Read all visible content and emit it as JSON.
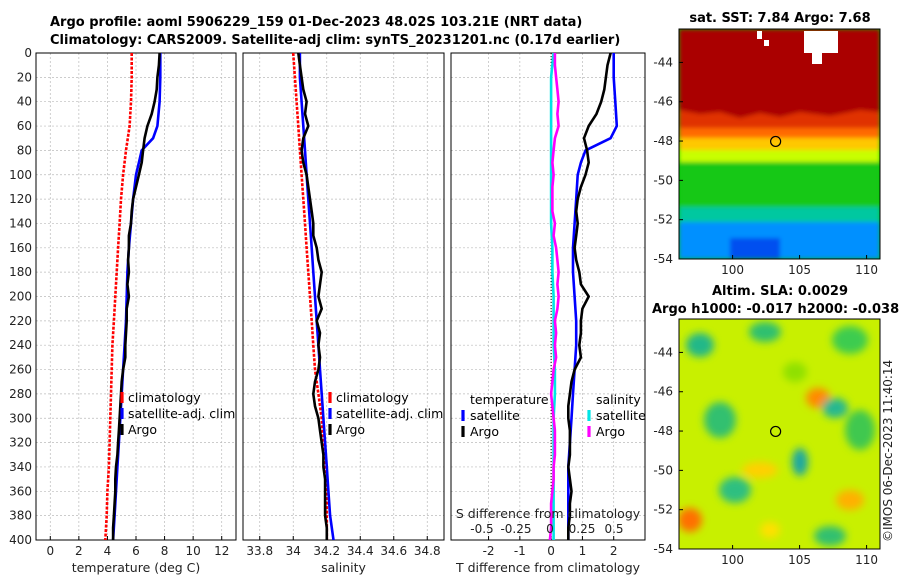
{
  "title_line1": "Argo profile: aoml 5906229_159 01-Dec-2023 48.02S 103.21E (NRT data)",
  "title_line2": "Climatology: CARS2009. Satellite-adj clim: synTS_20231201.nc (0.17d earlier)",
  "colors": {
    "climatology": "#ff0000",
    "satellite": "#0000ff",
    "argo": "#000000",
    "salinity_sat": "#00e5e5",
    "salinity_diff": "#ff00ff"
  },
  "depth_axis": {
    "min": 0,
    "max": 400,
    "ticks": [
      0,
      20,
      40,
      60,
      80,
      100,
      120,
      140,
      160,
      180,
      200,
      220,
      240,
      260,
      280,
      300,
      320,
      340,
      360,
      380,
      400
    ]
  },
  "chart_data": [
    {
      "type": "line",
      "name": "temperature-panel",
      "xlabel": "temperature (deg C)",
      "xlim": [
        -1,
        13
      ],
      "xticks": [
        0,
        2,
        4,
        6,
        8,
        10,
        12
      ],
      "legend": [
        "climatology",
        "satellite-adj. clim",
        "Argo"
      ],
      "series": [
        {
          "name": "climatology",
          "color_key": "climatology",
          "depth": [
            0,
            20,
            40,
            60,
            80,
            100,
            120,
            140,
            160,
            180,
            200,
            220,
            240,
            260,
            280,
            300,
            320,
            340,
            360,
            380,
            400
          ],
          "values": [
            5.7,
            5.7,
            5.65,
            5.55,
            5.3,
            5.1,
            4.95,
            4.85,
            4.75,
            4.65,
            4.55,
            4.45,
            4.35,
            4.3,
            4.25,
            4.2,
            4.15,
            4.1,
            4.0,
            3.95,
            3.85
          ]
        },
        {
          "name": "satellite-adj. clim",
          "color_key": "satellite",
          "depth": [
            0,
            20,
            40,
            60,
            70,
            80,
            90,
            100,
            120,
            140,
            160,
            180,
            200,
            220,
            240,
            260,
            280,
            300,
            320,
            340,
            360,
            380,
            400
          ],
          "values": [
            7.7,
            7.7,
            7.65,
            7.5,
            7.2,
            6.4,
            6.2,
            6.0,
            5.8,
            5.65,
            5.5,
            5.4,
            5.35,
            5.3,
            5.2,
            5.1,
            5.0,
            4.9,
            4.8,
            4.7,
            4.6,
            4.5,
            4.4
          ]
        },
        {
          "name": "Argo",
          "color_key": "argo",
          "depth": [
            0,
            10,
            20,
            30,
            40,
            50,
            60,
            70,
            80,
            90,
            100,
            110,
            120,
            130,
            140,
            150,
            160,
            170,
            180,
            190,
            200,
            210,
            220,
            230,
            240,
            250,
            260,
            270,
            280,
            290,
            300,
            310,
            320,
            330,
            340,
            350,
            360,
            370,
            380,
            390,
            400
          ],
          "values": [
            7.65,
            7.6,
            7.5,
            7.45,
            7.3,
            7.1,
            6.8,
            6.6,
            6.5,
            6.4,
            6.2,
            6.0,
            5.8,
            5.7,
            5.65,
            5.5,
            5.5,
            5.45,
            5.5,
            5.4,
            5.5,
            5.35,
            5.35,
            5.3,
            5.25,
            5.25,
            5.1,
            5.0,
            4.95,
            4.9,
            4.85,
            4.8,
            4.75,
            4.7,
            4.6,
            4.55,
            4.55,
            4.5,
            4.45,
            4.4,
            4.4
          ]
        }
      ]
    },
    {
      "type": "line",
      "name": "salinity-panel",
      "xlabel": "salinity",
      "xlim": [
        33.7,
        34.9
      ],
      "xticks": [
        33.8,
        34,
        34.2,
        34.4,
        34.6,
        34.8
      ],
      "xtick_labels": [
        "33.8",
        "34",
        "34.2",
        "34.4",
        "34.6",
        "34.8"
      ],
      "legend": [
        "climatology",
        "satellite-adj. clim",
        "Argo"
      ],
      "series": [
        {
          "name": "climatology",
          "color_key": "climatology",
          "depth": [
            0,
            20,
            40,
            60,
            80,
            100,
            120,
            140,
            160,
            180,
            200,
            220,
            240,
            260,
            280,
            300,
            320,
            340,
            360,
            380,
            400
          ],
          "values": [
            34.0,
            34.01,
            34.02,
            34.03,
            34.04,
            34.05,
            34.06,
            34.07,
            34.08,
            34.09,
            34.1,
            34.11,
            34.12,
            34.13,
            34.15,
            34.17,
            34.18,
            34.19,
            34.2,
            34.2,
            34.2
          ]
        },
        {
          "name": "satellite-adj. clim",
          "color_key": "satellite",
          "depth": [
            0,
            20,
            40,
            60,
            80,
            100,
            120,
            140,
            160,
            180,
            200,
            220,
            240,
            260,
            280,
            300,
            320,
            340,
            360,
            380,
            400
          ],
          "values": [
            34.04,
            34.04,
            34.05,
            34.06,
            34.07,
            34.08,
            34.09,
            34.1,
            34.11,
            34.12,
            34.13,
            34.14,
            34.15,
            34.16,
            34.17,
            34.18,
            34.19,
            34.2,
            34.21,
            34.22,
            34.24
          ]
        },
        {
          "name": "Argo",
          "color_key": "argo",
          "depth": [
            0,
            10,
            20,
            30,
            40,
            50,
            60,
            70,
            80,
            90,
            100,
            110,
            120,
            130,
            140,
            150,
            160,
            170,
            180,
            190,
            200,
            210,
            220,
            230,
            240,
            250,
            260,
            270,
            280,
            290,
            300,
            310,
            320,
            330,
            340,
            350,
            360,
            370,
            380,
            390,
            400
          ],
          "values": [
            34.03,
            34.04,
            34.05,
            34.06,
            34.08,
            34.07,
            34.09,
            34.06,
            34.05,
            34.06,
            34.08,
            34.09,
            34.1,
            34.11,
            34.12,
            34.12,
            34.14,
            34.15,
            34.17,
            34.16,
            34.15,
            34.17,
            34.14,
            34.16,
            34.15,
            34.16,
            34.15,
            34.13,
            34.12,
            34.13,
            34.15,
            34.16,
            34.17,
            34.18,
            34.18,
            34.19,
            34.19,
            34.19,
            34.19,
            34.2,
            34.2
          ]
        }
      ]
    },
    {
      "type": "line",
      "name": "difference-panel",
      "xlabel": "T difference from climatology",
      "xlim": [
        -3.2,
        3.0
      ],
      "xticks": [
        -2,
        -1,
        0,
        1,
        2
      ],
      "xtick_labels": [
        "-2",
        "-1",
        "0",
        "1",
        "2"
      ],
      "top_axis_label": "S difference from climatology",
      "top_ticks": [
        "-0.5",
        "-0.25",
        "0",
        "0.25",
        "0.5"
      ],
      "legend_temperature_title": "temperature",
      "legend_salinity_title": "salinity",
      "legend_temperature": [
        "satellite",
        "Argo"
      ],
      "legend_salinity": [
        "satellite",
        "Argo"
      ],
      "series": [
        {
          "name": "T satellite",
          "color_key": "satellite",
          "depth": [
            0,
            20,
            40,
            60,
            70,
            80,
            90,
            100,
            120,
            140,
            160,
            180,
            200,
            220,
            240,
            260,
            280,
            300,
            320,
            340,
            360,
            380,
            400
          ],
          "values": [
            2.0,
            2.0,
            2.05,
            2.1,
            1.9,
            1.1,
            0.95,
            0.85,
            0.8,
            0.75,
            0.7,
            0.7,
            0.75,
            0.8,
            0.8,
            0.75,
            0.7,
            0.65,
            0.6,
            0.55,
            0.55,
            0.55,
            0.55
          ]
        },
        {
          "name": "T Argo",
          "color_key": "argo",
          "depth": [
            0,
            10,
            20,
            30,
            40,
            50,
            60,
            70,
            80,
            90,
            100,
            110,
            120,
            130,
            140,
            150,
            160,
            170,
            180,
            190,
            200,
            210,
            220,
            230,
            240,
            250,
            260,
            270,
            280,
            290,
            300,
            310,
            320,
            330,
            340,
            350,
            360,
            370,
            380,
            390,
            400
          ],
          "values": [
            1.9,
            1.8,
            1.75,
            1.7,
            1.6,
            1.45,
            1.2,
            1.05,
            1.15,
            1.2,
            1.1,
            0.95,
            0.85,
            0.8,
            0.85,
            0.8,
            0.75,
            0.8,
            0.9,
            0.95,
            1.2,
            1.0,
            0.95,
            0.95,
            0.9,
            0.95,
            0.75,
            0.65,
            0.6,
            0.55,
            0.55,
            0.6,
            0.6,
            0.6,
            0.55,
            0.6,
            0.65,
            0.6,
            0.6,
            0.55,
            0.55
          ]
        },
        {
          "name": "S satellite",
          "color_key": "salinity_sat",
          "depth": [
            0,
            20,
            40,
            60,
            80,
            100,
            120,
            140,
            160,
            180,
            200,
            220,
            240,
            260,
            280,
            300,
            320,
            340,
            360,
            380,
            400
          ],
          "values": [
            0.02,
            0.0,
            0.0,
            0.0,
            0.0,
            0.0,
            0.0,
            0.0,
            0.01,
            0.01,
            0.02,
            0.02,
            0.02,
            0.03,
            0.03,
            0.02,
            0.02,
            0.02,
            0.02,
            0.02,
            0.02
          ]
        },
        {
          "name": "S Argo",
          "color_key": "salinity_diff",
          "depth": [
            0,
            10,
            20,
            30,
            40,
            50,
            60,
            70,
            80,
            90,
            100,
            110,
            120,
            130,
            140,
            150,
            160,
            170,
            180,
            190,
            200,
            210,
            220,
            230,
            240,
            250,
            260,
            270,
            280,
            290,
            300,
            310,
            320,
            330,
            340,
            350,
            360,
            370,
            380,
            390,
            400
          ],
          "values": [
            0.03,
            0.03,
            0.04,
            0.05,
            0.06,
            0.05,
            0.06,
            0.03,
            0.02,
            0.01,
            0.02,
            0.01,
            0.01,
            0.01,
            0.03,
            0.02,
            0.04,
            0.05,
            0.06,
            0.05,
            0.06,
            0.05,
            0.03,
            0.04,
            0.03,
            0.04,
            0.02,
            0.01,
            0.0,
            0.01,
            0.02,
            0.03,
            0.03,
            0.03,
            0.02,
            0.02,
            0.01,
            0.0,
            0.0,
            0.0,
            -0.01
          ]
        }
      ]
    }
  ],
  "sst_map": {
    "title": "sat. SST: 7.84 Argo: 7.68",
    "yticks": [
      -44,
      -46,
      -48,
      -50,
      -52,
      -54
    ],
    "ytick_labels": [
      "-44",
      "-46",
      "-48",
      "-50",
      "-52",
      "-54"
    ],
    "xticks": [
      100,
      105,
      110
    ],
    "xtick_labels": [
      "100",
      "105",
      "110"
    ],
    "float_lon": 103.21,
    "float_lat": -48.02
  },
  "sla_map": {
    "title_line1": "Altim. SLA: 0.0029",
    "title_line2": "Argo h1000: -0.017 h2000: -0.038",
    "yticks": [
      -44,
      -46,
      -48,
      -50,
      -52,
      -54
    ],
    "ytick_labels": [
      "-44",
      "-46",
      "-48",
      "-50",
      "-52",
      "-54"
    ],
    "xticks": [
      100,
      105,
      110
    ],
    "xtick_labels": [
      "100",
      "105",
      "110"
    ],
    "float_lon": 103.21,
    "float_lat": -48.02
  },
  "credit": "©IMOS 06-Dec-2023 11:40:14"
}
